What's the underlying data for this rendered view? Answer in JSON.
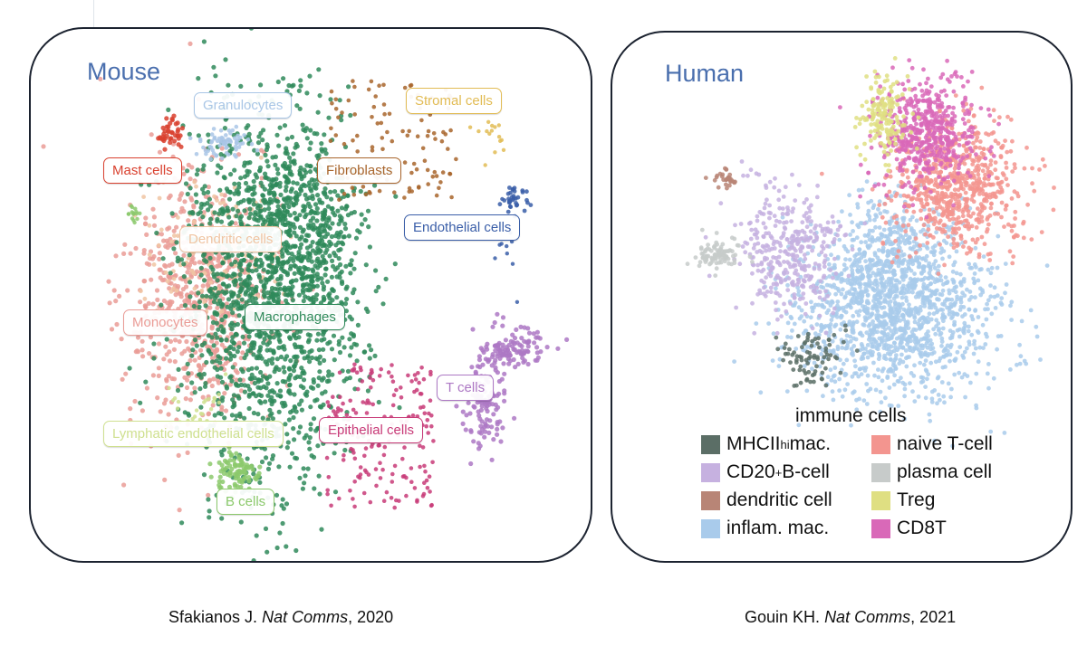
{
  "colors": {
    "border": "#1c2330",
    "title": "#4a6fae"
  },
  "mouse": {
    "title": "Mouse",
    "clusters": [
      {
        "name": "Granulocytes",
        "color": "#a9c6e6"
      },
      {
        "name": "Stromal cells",
        "color": "#e2bc55"
      },
      {
        "name": "Mast cells",
        "color": "#d9412f"
      },
      {
        "name": "Fibroblasts",
        "color": "#a8652c"
      },
      {
        "name": "Endothelial cells",
        "color": "#3a5ea8"
      },
      {
        "name": "Dendritic cells",
        "color": "#f0c4a2"
      },
      {
        "name": "Monocytes",
        "color": "#ea9c96"
      },
      {
        "name": "Macrophages",
        "color": "#2f8a5a"
      },
      {
        "name": "T cells",
        "color": "#ad78c4"
      },
      {
        "name": "Lymphatic endothelial cells",
        "color": "#cfe08f"
      },
      {
        "name": "Epithelial cells",
        "color": "#c83b78"
      },
      {
        "name": "B cells",
        "color": "#8cc96c"
      }
    ]
  },
  "human": {
    "title": "Human",
    "legend_title": "immune cells",
    "legend": [
      {
        "label": "MHCII",
        "sup": "hi",
        "suffix": " mac.",
        "color": "#5b6e66"
      },
      {
        "label": "naive T-cell",
        "color": "#f3958f"
      },
      {
        "label": "CD20",
        "sup": "+",
        "suffix": " B-cell",
        "color": "#c6b1e0"
      },
      {
        "label": "plasma cell",
        "color": "#c7cbca"
      },
      {
        "label": "dendritic cell",
        "color": "#b88576"
      },
      {
        "label": "Treg",
        "color": "#dfdf82"
      },
      {
        "label": "inflam. mac.",
        "color": "#a9cbeb"
      },
      {
        "label": "CD8T",
        "color": "#d969b8"
      }
    ]
  },
  "citations": {
    "left": {
      "author": "Sfakianos J.",
      "journal": "Nat Comms",
      "year": ", 2020"
    },
    "right": {
      "author": "Gouin KH.",
      "journal": "Nat Comms",
      "year": ", 2021"
    }
  }
}
